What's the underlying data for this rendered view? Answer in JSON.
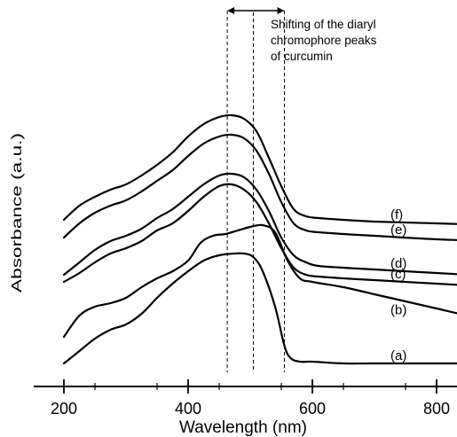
{
  "chart_data": {
    "type": "line",
    "xlabel": "Wavelength (nm)",
    "ylabel": "Absorbance (a.u.)",
    "xlim": [
      200,
      900
    ],
    "xticks": [
      200,
      400,
      600,
      800
    ],
    "y_ticks_shown": false,
    "annotation": {
      "lines": [
        "Shifting of the diaryl",
        "chromophore peaks",
        "of curcumin"
      ],
      "guide_wavelengths": [
        [
          463,
          555
        ],
        [
          463,
          555
        ],
        [
          505,
          505
        ]
      ],
      "arrow": [
        463,
        555
      ]
    },
    "series": [
      {
        "name": "(a)",
        "x": [
          200,
          225,
          250,
          275,
          300,
          325,
          350,
          375,
          400,
          425,
          450,
          475,
          490,
          505,
          520,
          540,
          555,
          565,
          580,
          600,
          650,
          700,
          800,
          900
        ],
        "y": [
          0.0,
          0.07,
          0.14,
          0.19,
          0.22,
          0.28,
          0.37,
          0.45,
          0.52,
          0.58,
          0.61,
          0.62,
          0.62,
          0.6,
          0.52,
          0.32,
          0.1,
          0.03,
          0.01,
          0.01,
          0.0,
          0.0,
          0.0,
          0.0
        ]
      },
      {
        "name": "(b)",
        "x": [
          200,
          225,
          250,
          275,
          300,
          325,
          350,
          375,
          400,
          420,
          440,
          460,
          480,
          500,
          520,
          540,
          560,
          580,
          600,
          650,
          700,
          750,
          800,
          850,
          900
        ],
        "y": [
          0.15,
          0.27,
          0.32,
          0.34,
          0.37,
          0.43,
          0.48,
          0.52,
          0.58,
          0.68,
          0.72,
          0.73,
          0.75,
          0.77,
          0.78,
          0.74,
          0.58,
          0.48,
          0.46,
          0.43,
          0.39,
          0.35,
          0.31,
          0.27,
          0.24
        ]
      },
      {
        "name": "(c)",
        "x": [
          200,
          225,
          250,
          275,
          300,
          325,
          350,
          375,
          400,
          425,
          450,
          470,
          490,
          510,
          530,
          550,
          570,
          590,
          610,
          650,
          700,
          800,
          900
        ],
        "y": [
          0.46,
          0.51,
          0.57,
          0.62,
          0.65,
          0.69,
          0.75,
          0.79,
          0.86,
          0.94,
          1.0,
          1.01,
          0.98,
          0.91,
          0.79,
          0.65,
          0.54,
          0.5,
          0.49,
          0.48,
          0.47,
          0.45,
          0.43
        ]
      },
      {
        "name": "(d)",
        "x": [
          200,
          225,
          250,
          275,
          300,
          325,
          350,
          375,
          400,
          425,
          450,
          470,
          490,
          510,
          530,
          550,
          570,
          590,
          610,
          650,
          700,
          800,
          900
        ],
        "y": [
          0.5,
          0.57,
          0.64,
          0.69,
          0.72,
          0.76,
          0.82,
          0.87,
          0.94,
          1.01,
          1.06,
          1.07,
          1.05,
          0.98,
          0.86,
          0.71,
          0.61,
          0.57,
          0.55,
          0.54,
          0.53,
          0.51,
          0.49
        ]
      },
      {
        "name": "(e)",
        "x": [
          200,
          225,
          250,
          275,
          300,
          325,
          350,
          375,
          400,
          425,
          450,
          470,
          490,
          510,
          530,
          550,
          570,
          590,
          610,
          650,
          700,
          800,
          900
        ],
        "y": [
          0.71,
          0.79,
          0.85,
          0.89,
          0.92,
          0.97,
          1.03,
          1.09,
          1.17,
          1.24,
          1.28,
          1.29,
          1.27,
          1.2,
          1.07,
          0.91,
          0.79,
          0.75,
          0.74,
          0.73,
          0.72,
          0.7,
          0.69
        ]
      },
      {
        "name": "(f)",
        "x": [
          200,
          225,
          250,
          275,
          300,
          325,
          350,
          375,
          400,
          425,
          450,
          470,
          490,
          510,
          530,
          550,
          570,
          590,
          610,
          650,
          700,
          800,
          900
        ],
        "y": [
          0.81,
          0.89,
          0.94,
          0.98,
          1.01,
          1.06,
          1.12,
          1.19,
          1.28,
          1.35,
          1.39,
          1.4,
          1.38,
          1.31,
          1.16,
          1.0,
          0.87,
          0.83,
          0.82,
          0.81,
          0.8,
          0.79,
          0.78
        ]
      }
    ]
  }
}
